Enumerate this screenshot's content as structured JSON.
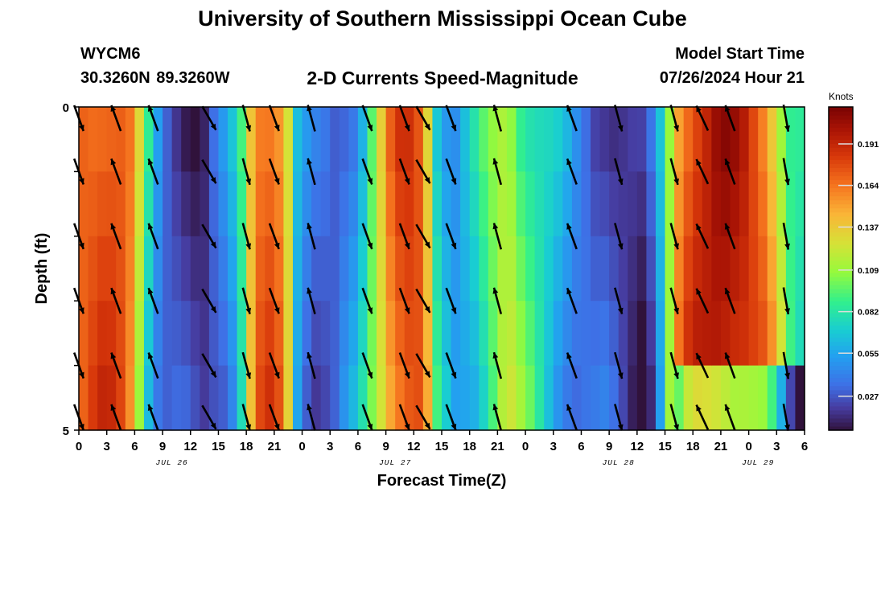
{
  "header": {
    "title": "University of Southern Mississippi Ocean Cube",
    "station_id": "WYCM6",
    "station_coords": "30.3260N  89.3260W",
    "plot_title": "2-D Currents Speed-Magnitude",
    "model_start_label": "Model Start Time",
    "model_start_value": "07/26/2024 Hour 21"
  },
  "footer": {
    "title": "University of Southern Mississippi Ocean Cube"
  },
  "chart_data": {
    "type": "heatmap",
    "xlabel": "Forecast Time(Z)",
    "ylabel": "Depth (ft)",
    "x_tick_labels": [
      "0",
      "3",
      "6",
      "9",
      "12",
      "15",
      "18",
      "21",
      "0",
      "3",
      "6",
      "9",
      "12",
      "15",
      "18",
      "21",
      "0",
      "3",
      "6",
      "9",
      "12",
      "15",
      "18",
      "21",
      "0",
      "3",
      "6"
    ],
    "date_labels": [
      {
        "label": "JUL 26",
        "hour_index": 10
      },
      {
        "label": "JUL 27",
        "hour_index": 34
      },
      {
        "label": "JUL 28",
        "hour_index": 58
      },
      {
        "label": "JUL 29",
        "hour_index": 73
      }
    ],
    "x_range_hours": [
      0,
      78
    ],
    "y_tick_labels": [
      "0",
      "5"
    ],
    "y_range_ft": [
      0,
      5
    ],
    "depth_layers": 5,
    "colorbar": {
      "unit": "Knots",
      "tick_labels": [
        "0.191",
        "0.164",
        "0.137",
        "0.109",
        "0.082",
        "0.055",
        "0.027"
      ],
      "range": [
        0.005,
        0.215
      ]
    },
    "speed_by_hour": [
      0.17,
      0.175,
      0.18,
      0.18,
      0.175,
      0.16,
      0.12,
      0.075,
      0.045,
      0.03,
      0.025,
      0.02,
      0.015,
      0.015,
      0.03,
      0.04,
      0.055,
      0.085,
      0.14,
      0.17,
      0.175,
      0.165,
      0.13,
      0.06,
      0.04,
      0.03,
      0.03,
      0.03,
      0.04,
      0.05,
      0.07,
      0.1,
      0.13,
      0.16,
      0.175,
      0.18,
      0.175,
      0.14,
      0.08,
      0.06,
      0.05,
      0.06,
      0.07,
      0.085,
      0.1,
      0.115,
      0.115,
      0.1,
      0.09,
      0.08,
      0.07,
      0.06,
      0.05,
      0.04,
      0.035,
      0.03,
      0.03,
      0.025,
      0.02,
      0.015,
      0.01,
      0.025,
      0.06,
      0.11,
      0.16,
      0.18,
      0.19,
      0.195,
      0.2,
      0.2,
      0.195,
      0.19,
      0.18,
      0.17,
      0.15,
      0.12,
      0.09,
      0.08
    ],
    "arrow_hours": [
      0,
      4,
      8,
      14,
      18,
      21,
      25,
      31,
      35,
      37,
      40,
      45,
      53,
      58,
      64,
      67,
      70,
      76
    ],
    "arrow_directions_deg": [
      160,
      -20,
      -20,
      150,
      165,
      160,
      -15,
      160,
      160,
      150,
      160,
      -15,
      -20,
      165,
      165,
      -25,
      -20,
      170
    ]
  }
}
